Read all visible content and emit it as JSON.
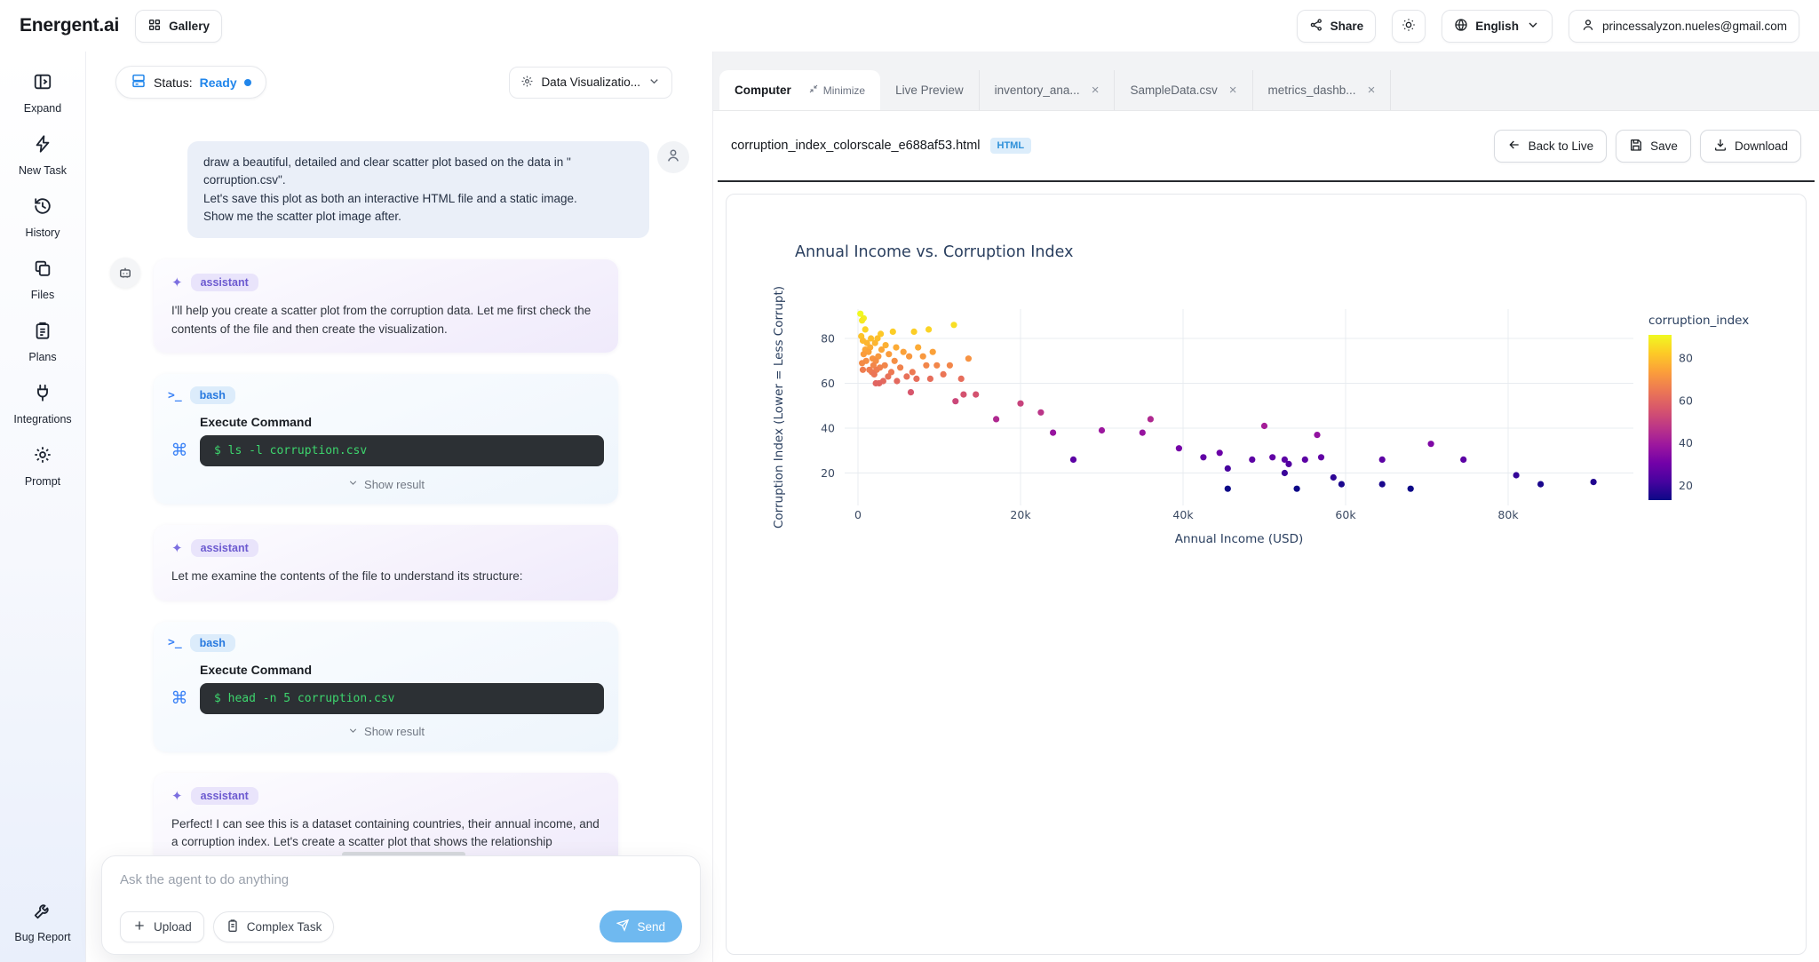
{
  "colors": {
    "accent_blue": "#2186eb",
    "send_blue": "#6fb9f0",
    "terminal_green": "#3dd56d",
    "chart_text": "#2a3f5f",
    "gridline": "#e8ecf0"
  },
  "header": {
    "brand": "Energent.ai",
    "gallery_label": "Gallery",
    "share_label": "Share",
    "language": "English",
    "email": "princessalyzon.nueles@gmail.com"
  },
  "sidebar": {
    "items": [
      {
        "label": "Expand",
        "icon": "expand-panel-icon"
      },
      {
        "label": "New Task",
        "icon": "bolt-icon"
      },
      {
        "label": "History",
        "icon": "history-icon"
      },
      {
        "label": "Files",
        "icon": "files-icon"
      },
      {
        "label": "Plans",
        "icon": "clipboard-icon"
      },
      {
        "label": "Integrations",
        "icon": "plug-icon"
      },
      {
        "label": "Prompt",
        "icon": "gear-icon"
      }
    ],
    "bottom_item": {
      "label": "Bug Report",
      "icon": "wrench-icon"
    }
  },
  "chat": {
    "status": {
      "label": "Status:",
      "value": "Ready"
    },
    "agent_select": "Data Visualizatio...",
    "messages": [
      {
        "role": "user",
        "text": "draw a beautiful, detailed and clear scatter plot based on the data in \" corruption.csv\".\nLet's save this plot as both an interactive HTML file and a static image.\nShow me the scatter plot image after."
      },
      {
        "role": "assistant",
        "badge": "assistant",
        "avatar": true,
        "text": "I'll help you create a scatter plot from the corruption data. Let me first check the contents of the file and then create the visualization."
      },
      {
        "role": "bash",
        "badge": "bash",
        "heading": "Execute Command",
        "command": "$ ls -l corruption.csv",
        "show_result": "Show result"
      },
      {
        "role": "assistant",
        "badge": "assistant",
        "text": "Let me examine the contents of the file to understand its structure:"
      },
      {
        "role": "bash",
        "badge": "bash",
        "heading": "Execute Command",
        "command": "$ head -n 5 corruption.csv",
        "show_result": "Show result"
      },
      {
        "role": "assistant",
        "badge": "assistant",
        "text": "Perfect! I can see this is a dataset containing countries, their annual income, and a corruption index. Let's create a scatter plot that shows the relationship between annual income and corruption index, with each point"
      }
    ],
    "input": {
      "placeholder": "Ask the agent to do anything",
      "upload_label": "Upload",
      "complex_task_label": "Complex Task",
      "send_label": "Send"
    }
  },
  "workspace": {
    "tabs": [
      {
        "label": "Computer",
        "active": true,
        "minimize_label": "Minimize"
      },
      {
        "label": "Live Preview"
      },
      {
        "label": "inventory_ana...",
        "closable": true
      },
      {
        "label": "SampleData.csv",
        "closable": true
      },
      {
        "label": "metrics_dashb...",
        "closable": true
      }
    ],
    "file_bar": {
      "filename": "corruption_index_colorscale_e688af53.html",
      "badge": "HTML",
      "back_label": "Back to Live",
      "save_label": "Save",
      "download_label": "Download"
    }
  },
  "chart_data": {
    "type": "scatter",
    "title": "Annual Income vs. Corruption Index",
    "xlabel": "Annual Income (USD)",
    "ylabel": "Corruption Index (Lower = Less Corrupt)",
    "xlim": [
      -1600,
      95400
    ],
    "ylim": [
      5.5,
      93
    ],
    "grid": true,
    "xticks": {
      "values": [
        0,
        20000,
        40000,
        60000,
        80000
      ],
      "labels": [
        "0",
        "20k",
        "40k",
        "60k",
        "80k"
      ]
    },
    "yticks": {
      "values": [
        20,
        40,
        60,
        80
      ],
      "labels": [
        "20",
        "40",
        "60",
        "80"
      ]
    },
    "colorbar": {
      "title": "corruption_index",
      "ticks": [
        80,
        60,
        40,
        20
      ],
      "range": [
        13,
        91
      ],
      "colorscale": "plasma",
      "colors": [
        "#0d0887",
        "#46039f",
        "#7201a8",
        "#9c179e",
        "#bd3786",
        "#d8576b",
        "#ed7953",
        "#fb9f3a",
        "#fdca26",
        "#f0f921"
      ]
    },
    "points": [
      [
        300,
        91
      ],
      [
        700,
        89
      ],
      [
        500,
        88
      ],
      [
        11800,
        86
      ],
      [
        900,
        84
      ],
      [
        4300,
        83
      ],
      [
        6900,
        83
      ],
      [
        8700,
        84
      ],
      [
        2800,
        82
      ],
      [
        400,
        81
      ],
      [
        1600,
        80
      ],
      [
        2400,
        80
      ],
      [
        600,
        79
      ],
      [
        1100,
        78
      ],
      [
        2100,
        78
      ],
      [
        3400,
        77
      ],
      [
        1500,
        76
      ],
      [
        4700,
        76
      ],
      [
        7400,
        76
      ],
      [
        900,
        75
      ],
      [
        2900,
        75
      ],
      [
        5600,
        74
      ],
      [
        9200,
        74
      ],
      [
        1300,
        74
      ],
      [
        3800,
        73
      ],
      [
        700,
        73
      ],
      [
        2500,
        72
      ],
      [
        6300,
        72
      ],
      [
        8000,
        72
      ],
      [
        1800,
        71
      ],
      [
        13600,
        71
      ],
      [
        4500,
        70
      ],
      [
        1000,
        70
      ],
      [
        2200,
        70
      ],
      [
        500,
        69
      ],
      [
        1900,
        68
      ],
      [
        3300,
        68
      ],
      [
        8400,
        68
      ],
      [
        9700,
        68
      ],
      [
        11300,
        68
      ],
      [
        5200,
        67
      ],
      [
        2700,
        67
      ],
      [
        1400,
        66
      ],
      [
        600,
        66
      ],
      [
        2300,
        66
      ],
      [
        4100,
        65
      ],
      [
        6700,
        65
      ],
      [
        1700,
        65
      ],
      [
        2000,
        64
      ],
      [
        10500,
        64
      ],
      [
        6000,
        63
      ],
      [
        3700,
        63
      ],
      [
        7200,
        62
      ],
      [
        8900,
        62
      ],
      [
        12700,
        62
      ],
      [
        4800,
        61
      ],
      [
        3100,
        61
      ],
      [
        2600,
        60
      ],
      [
        2200,
        60
      ],
      [
        6500,
        56
      ],
      [
        12000,
        52
      ],
      [
        13000,
        55
      ],
      [
        14500,
        55
      ],
      [
        17000,
        44
      ],
      [
        20000,
        51
      ],
      [
        22500,
        47
      ],
      [
        24000,
        38
      ],
      [
        30000,
        39
      ],
      [
        35000,
        38
      ],
      [
        36000,
        44
      ],
      [
        26500,
        26
      ],
      [
        39500,
        31
      ],
      [
        42500,
        27
      ],
      [
        44500,
        29
      ],
      [
        45500,
        22
      ],
      [
        48500,
        26
      ],
      [
        50000,
        41
      ],
      [
        51000,
        27
      ],
      [
        52500,
        26
      ],
      [
        53000,
        24
      ],
      [
        56500,
        37
      ],
      [
        57000,
        27
      ],
      [
        55000,
        26
      ],
      [
        45500,
        13
      ],
      [
        52500,
        20
      ],
      [
        54000,
        13
      ],
      [
        58500,
        18
      ],
      [
        59500,
        15
      ],
      [
        64500,
        26
      ],
      [
        64500,
        15
      ],
      [
        68000,
        13
      ],
      [
        70500,
        33
      ],
      [
        74500,
        26
      ],
      [
        81000,
        19
      ],
      [
        84000,
        15
      ],
      [
        90500,
        16
      ]
    ]
  }
}
